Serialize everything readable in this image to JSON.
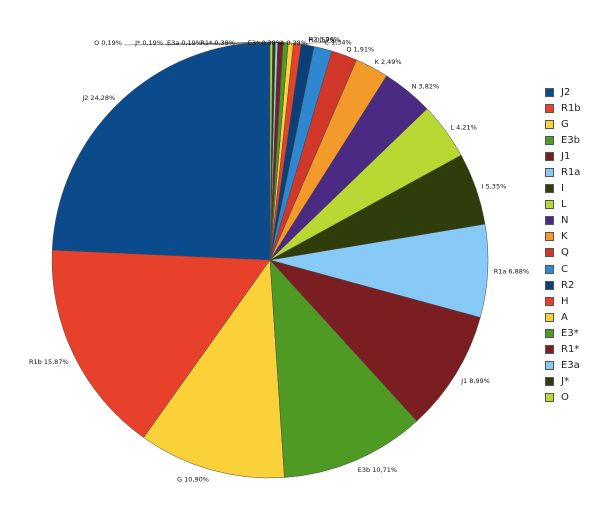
{
  "chart_data": {
    "type": "pie",
    "title": "",
    "unit": "%",
    "legend": "right",
    "slices": [
      {
        "label": "J2",
        "value": 24.28,
        "value_text": "24,28%",
        "color": "#0b4a8b"
      },
      {
        "label": "R1b",
        "value": 15.87,
        "value_text": "15,87%",
        "color": "#e8412b"
      },
      {
        "label": "G",
        "value": 10.9,
        "value_text": "10,90%",
        "color": "#fbd13a"
      },
      {
        "label": "E3b",
        "value": 10.71,
        "value_text": "10,71%",
        "color": "#4f9a22"
      },
      {
        "label": "J1",
        "value": 8.99,
        "value_text": "8,99%",
        "color": "#7b1e22"
      },
      {
        "label": "R1a",
        "value": 6.88,
        "value_text": "6,88%",
        "color": "#87c9f7"
      },
      {
        "label": "I",
        "value": 5.35,
        "value_text": "5,35%",
        "color": "#2f3d0a"
      },
      {
        "label": "L",
        "value": 4.21,
        "value_text": "4,21%",
        "color": "#b9d833"
      },
      {
        "label": "N",
        "value": 3.82,
        "value_text": "3,82%",
        "color": "#4a2a82"
      },
      {
        "label": "K",
        "value": 2.49,
        "value_text": "2,49%",
        "color": "#f39a2b"
      },
      {
        "label": "Q",
        "value": 1.91,
        "value_text": "1,91%",
        "color": "#d1382a"
      },
      {
        "label": "C",
        "value": 1.34,
        "value_text": "1,34%",
        "color": "#2f87cf"
      },
      {
        "label": "R2",
        "value": 0.96,
        "value_text": "0,96%",
        "color": "#0b3f7a"
      },
      {
        "label": "H",
        "value": 0.57,
        "value_text": "0,57%",
        "color": "#e8412b"
      },
      {
        "label": "A",
        "value": 0.38,
        "value_text": "0,38%",
        "color": "#fbd13a"
      },
      {
        "label": "E3*",
        "value": 0.38,
        "value_text": "0,38%",
        "color": "#4f9a22"
      },
      {
        "label": "R1*",
        "value": 0.38,
        "value_text": "0,38%",
        "color": "#7b1e22"
      },
      {
        "label": "E3a",
        "value": 0.19,
        "value_text": "0,19%",
        "color": "#87c9f7"
      },
      {
        "label": "J*",
        "value": 0.19,
        "value_text": "0,19%",
        "color": "#2f3d0a"
      },
      {
        "label": "O",
        "value": 0.19,
        "value_text": "0,19%",
        "color": "#b9d833"
      }
    ]
  }
}
